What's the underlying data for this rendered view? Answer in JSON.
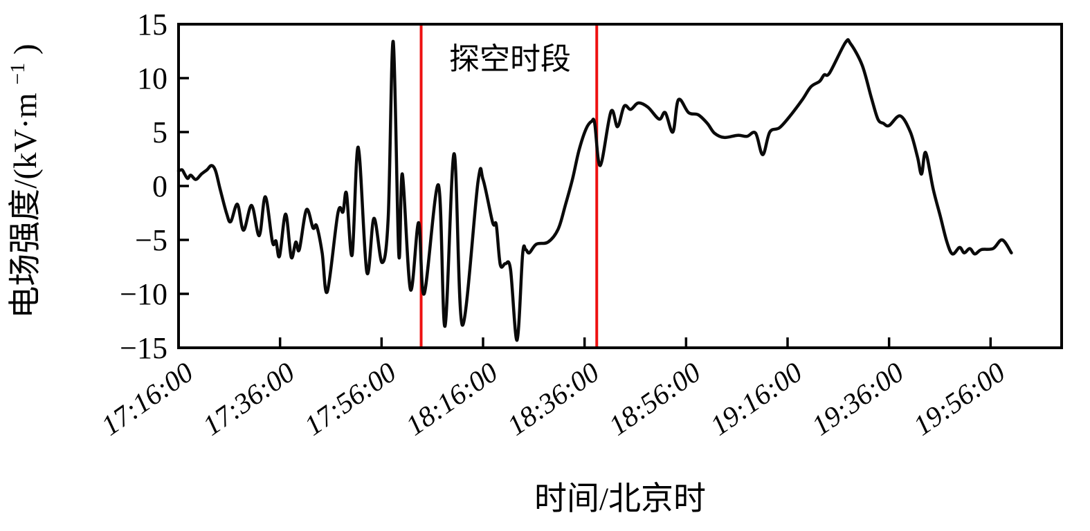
{
  "figure": {
    "background": "#ffffff",
    "annotation": {
      "text": "探空时段"
    },
    "xlabel": "时间/北京时",
    "ylabel": {
      "prefix": "电场强度/(kV·m",
      "superscript": "−1",
      "suffix": ")"
    }
  },
  "chart_data": {
    "type": "line",
    "title": "",
    "xlabel": "时间/北京时",
    "ylabel": "电场强度/(kV·m⁻¹)",
    "legend": "none",
    "grid": false,
    "x_tick_labels": [
      "17:16:00",
      "17:36:00",
      "17:56:00",
      "18:16:00",
      "18:36:00",
      "18:56:00",
      "19:16:00",
      "19:36:00",
      "19:56:00"
    ],
    "x_tick_minutes": [
      0,
      20,
      40,
      60,
      80,
      100,
      120,
      140,
      160
    ],
    "x_range_minutes": [
      0,
      174
    ],
    "x_start_time": "17:16:00",
    "y_ticks": [
      15,
      10,
      5,
      0,
      -5,
      -10,
      -15
    ],
    "ylim": [
      -15,
      15
    ],
    "line_color": "#0a0a0a",
    "vlines": {
      "color": "#ee1111",
      "x_minutes": [
        47.8,
        82.4
      ],
      "meaning": "探空时段 boundaries"
    },
    "series": [
      {
        "name": "电场强度",
        "units": "kV·m⁻¹",
        "points_minutes_value": [
          [
            0,
            1.4
          ],
          [
            0.7,
            1.5
          ],
          [
            1.2,
            1.1
          ],
          [
            1.8,
            0.7
          ],
          [
            2.4,
            1.0
          ],
          [
            3.4,
            0.6
          ],
          [
            4.5,
            1.1
          ],
          [
            5.6,
            1.5
          ],
          [
            6.5,
            1.9
          ],
          [
            7.3,
            1.4
          ],
          [
            8.2,
            -0.3
          ],
          [
            9.5,
            -2.6
          ],
          [
            10.3,
            -3.3
          ],
          [
            11.6,
            -1.7
          ],
          [
            12.8,
            -4.1
          ],
          [
            14.4,
            -1.8
          ],
          [
            15.9,
            -4.6
          ],
          [
            17.1,
            -1.0
          ],
          [
            18.5,
            -5.2
          ],
          [
            19.2,
            -5.1
          ],
          [
            19.9,
            -6.5
          ],
          [
            21.1,
            -2.6
          ],
          [
            22.2,
            -6.6
          ],
          [
            23.1,
            -5.2
          ],
          [
            23.8,
            -5.9
          ],
          [
            25.2,
            -2.2
          ],
          [
            26.5,
            -3.9
          ],
          [
            27.2,
            -3.7
          ],
          [
            28.3,
            -6.2
          ],
          [
            29.3,
            -9.8
          ],
          [
            31.4,
            -2.5
          ],
          [
            32.4,
            -2.4
          ],
          [
            33.1,
            -0.7
          ],
          [
            34.2,
            -6.4
          ],
          [
            35.4,
            3.6
          ],
          [
            37.1,
            -8.0
          ],
          [
            38.5,
            -3.0
          ],
          [
            40.1,
            -7.1
          ],
          [
            41.3,
            -3.0
          ],
          [
            42.3,
            13.4
          ],
          [
            43.4,
            -6.4
          ],
          [
            44.1,
            1.1
          ],
          [
            45.7,
            -9.6
          ],
          [
            47.3,
            -3.4
          ],
          [
            48.4,
            -10.0
          ],
          [
            51.2,
            0.1
          ],
          [
            52.5,
            -13.0
          ],
          [
            54.3,
            3.0
          ],
          [
            55.9,
            -12.9
          ],
          [
            59.0,
            0.4
          ],
          [
            60.0,
            0.6
          ],
          [
            61.9,
            -3.4
          ],
          [
            62.6,
            -3.6
          ],
          [
            63.4,
            -7.3
          ],
          [
            64.4,
            -7.2
          ],
          [
            65.4,
            -7.7
          ],
          [
            66.7,
            -14.3
          ],
          [
            67.8,
            -6.3
          ],
          [
            68.4,
            -5.9
          ],
          [
            69.1,
            -6.2
          ],
          [
            70.5,
            -5.4
          ],
          [
            72.8,
            -5.2
          ],
          [
            74.8,
            -4.0
          ],
          [
            76.2,
            -1.8
          ],
          [
            77.6,
            0.6
          ],
          [
            78.9,
            3.3
          ],
          [
            80.3,
            5.3
          ],
          [
            81.4,
            6.0
          ],
          [
            82.0,
            5.8
          ],
          [
            83.1,
            1.9
          ],
          [
            85.2,
            6.9
          ],
          [
            86.5,
            5.5
          ],
          [
            87.8,
            7.4
          ],
          [
            89.1,
            7.1
          ],
          [
            90.6,
            7.7
          ],
          [
            92.5,
            7.3
          ],
          [
            94.7,
            6.2
          ],
          [
            95.9,
            6.8
          ],
          [
            97.4,
            5.0
          ],
          [
            98.5,
            8.0
          ],
          [
            100.5,
            6.8
          ],
          [
            102.4,
            6.6
          ],
          [
            104.2,
            5.8
          ],
          [
            105.6,
            4.9
          ],
          [
            107.5,
            4.5
          ],
          [
            110.2,
            4.7
          ],
          [
            112.0,
            4.6
          ],
          [
            113.7,
            4.9
          ],
          [
            115.1,
            2.9
          ],
          [
            116.5,
            5.0
          ],
          [
            118.4,
            5.4
          ],
          [
            120.5,
            6.5
          ],
          [
            122.9,
            8.0
          ],
          [
            124.6,
            9.2
          ],
          [
            126.3,
            9.7
          ],
          [
            127.2,
            10.3
          ],
          [
            128.3,
            10.5
          ],
          [
            131.4,
            13.3
          ],
          [
            132.4,
            13.2
          ],
          [
            134.7,
            11.2
          ],
          [
            136.5,
            8.2
          ],
          [
            137.8,
            6.2
          ],
          [
            138.9,
            5.8
          ],
          [
            140.0,
            5.6
          ],
          [
            142.2,
            6.5
          ],
          [
            144.2,
            5.0
          ],
          [
            145.6,
            2.7
          ],
          [
            146.4,
            1.1
          ],
          [
            147.2,
            3.1
          ],
          [
            148.7,
            -0.3
          ],
          [
            150.1,
            -2.8
          ],
          [
            151.4,
            -5.2
          ],
          [
            152.5,
            -6.3
          ],
          [
            153.9,
            -5.7
          ],
          [
            154.8,
            -6.2
          ],
          [
            155.9,
            -5.8
          ],
          [
            156.9,
            -6.3
          ],
          [
            158.2,
            -5.9
          ],
          [
            160.5,
            -5.8
          ],
          [
            162.3,
            -5.0
          ],
          [
            164.1,
            -6.2
          ]
        ]
      }
    ]
  },
  "layout_note": "electric field strength vs Beijing time; red vertical lines bracket the sounding period"
}
